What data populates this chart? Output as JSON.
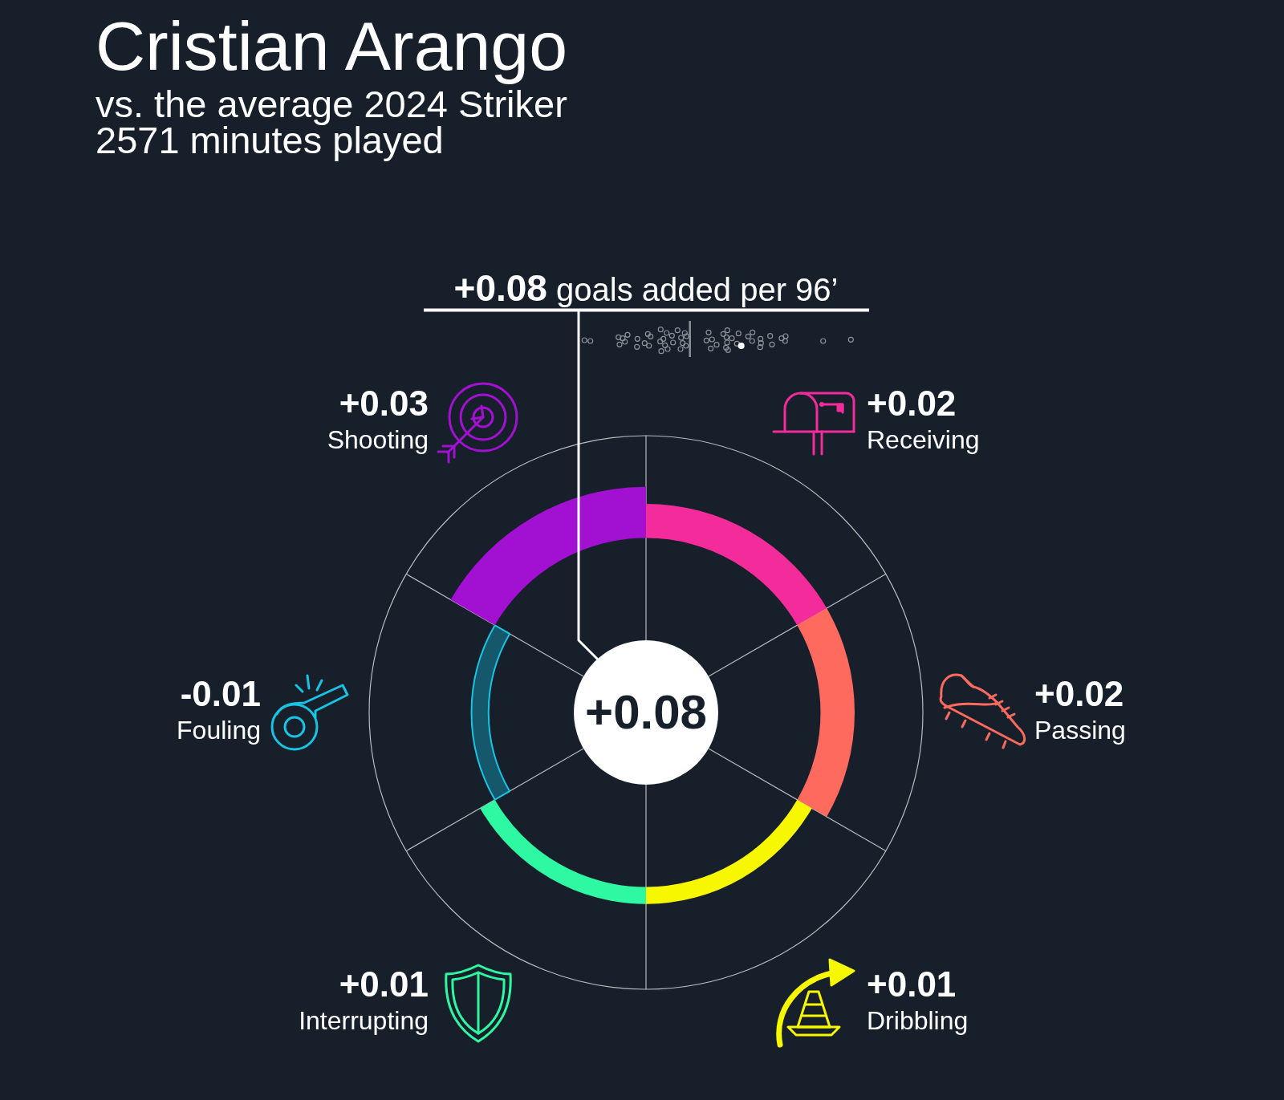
{
  "chart_data": {
    "type": "other",
    "title": "Cristian Arango",
    "subtitle": "vs. the average 2024 Striker\n2571 minutes played",
    "annotations": [
      "+0.08 goals added per 96’",
      "+0.08"
    ],
    "categories": [
      "Receiving",
      "Passing",
      "Dribbling",
      "Interrupting",
      "Fouling",
      "Shooting"
    ],
    "values": [
      0.02,
      0.02,
      0.01,
      0.01,
      -0.01,
      0.03
    ],
    "value_labels": [
      "+0.02",
      "+0.02",
      "+0.01",
      "+0.01",
      "-0.01",
      "+0.03"
    ],
    "colors": [
      "#f42b9b",
      "#ff6a5e",
      "#f7f700",
      "#2ef8a2",
      "#18c3e4",
      "#a211d2"
    ]
  }
}
